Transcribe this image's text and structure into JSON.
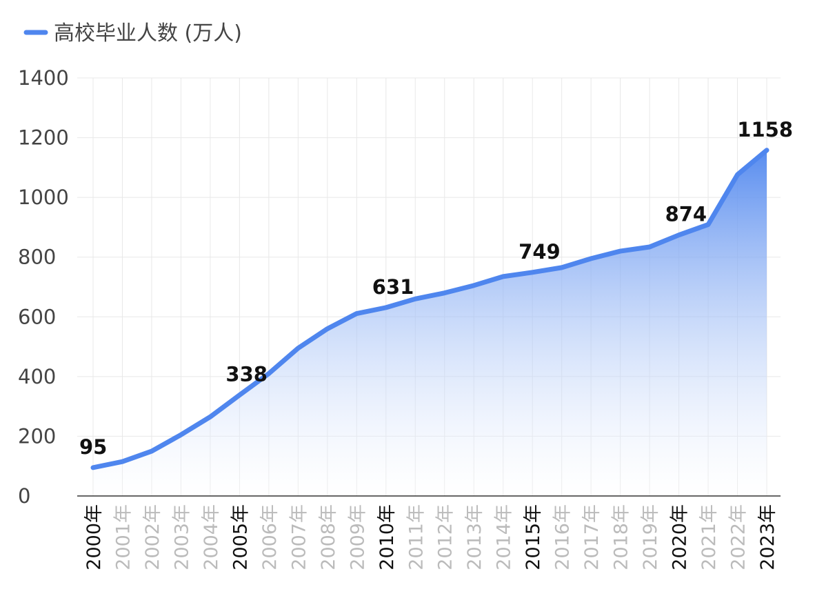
{
  "chart_data": {
    "type": "area",
    "legend": {
      "label": "高校毕业人数 (万人)",
      "position": "top-left"
    },
    "x": [
      "2000年",
      "2001年",
      "2002年",
      "2003年",
      "2004年",
      "2005年",
      "2006年",
      "2007年",
      "2008年",
      "2009年",
      "2010年",
      "2011年",
      "2012年",
      "2013年",
      "2014年",
      "2015年",
      "2016年",
      "2017年",
      "2018年",
      "2019年",
      "2020年",
      "2021年",
      "2022年",
      "2023年"
    ],
    "series": [
      {
        "name": "高校毕业人数 (万人)",
        "values": [
          95,
          115,
          150,
          205,
          265,
          338,
          410,
          495,
          560,
          611,
          631,
          660,
          680,
          705,
          735,
          749,
          765,
          795,
          820,
          834,
          874,
          909,
          1076,
          1158
        ],
        "color": "#4f86ee"
      }
    ],
    "data_labels": [
      {
        "index": 0,
        "text": "95"
      },
      {
        "index": 5,
        "text": "338"
      },
      {
        "index": 10,
        "text": "631"
      },
      {
        "index": 15,
        "text": "749"
      },
      {
        "index": 20,
        "text": "874"
      },
      {
        "index": 23,
        "text": "1158"
      }
    ],
    "emphasized_x_labels": [
      "2000年",
      "2005年",
      "2010年",
      "2015年",
      "2020年",
      "2023年"
    ],
    "yticks": [
      0,
      200,
      400,
      600,
      800,
      1000,
      1200,
      1400
    ],
    "ylim": [
      0,
      1400
    ],
    "grid": true,
    "colors": {
      "line": "#4f86ee",
      "fill_top": "#4f86ee",
      "fill_bottom": "#ffffff",
      "grid": "#e8e8e8",
      "axis_text": "#444444",
      "muted_text": "#bbbbbb",
      "label_text": "#111111"
    }
  }
}
